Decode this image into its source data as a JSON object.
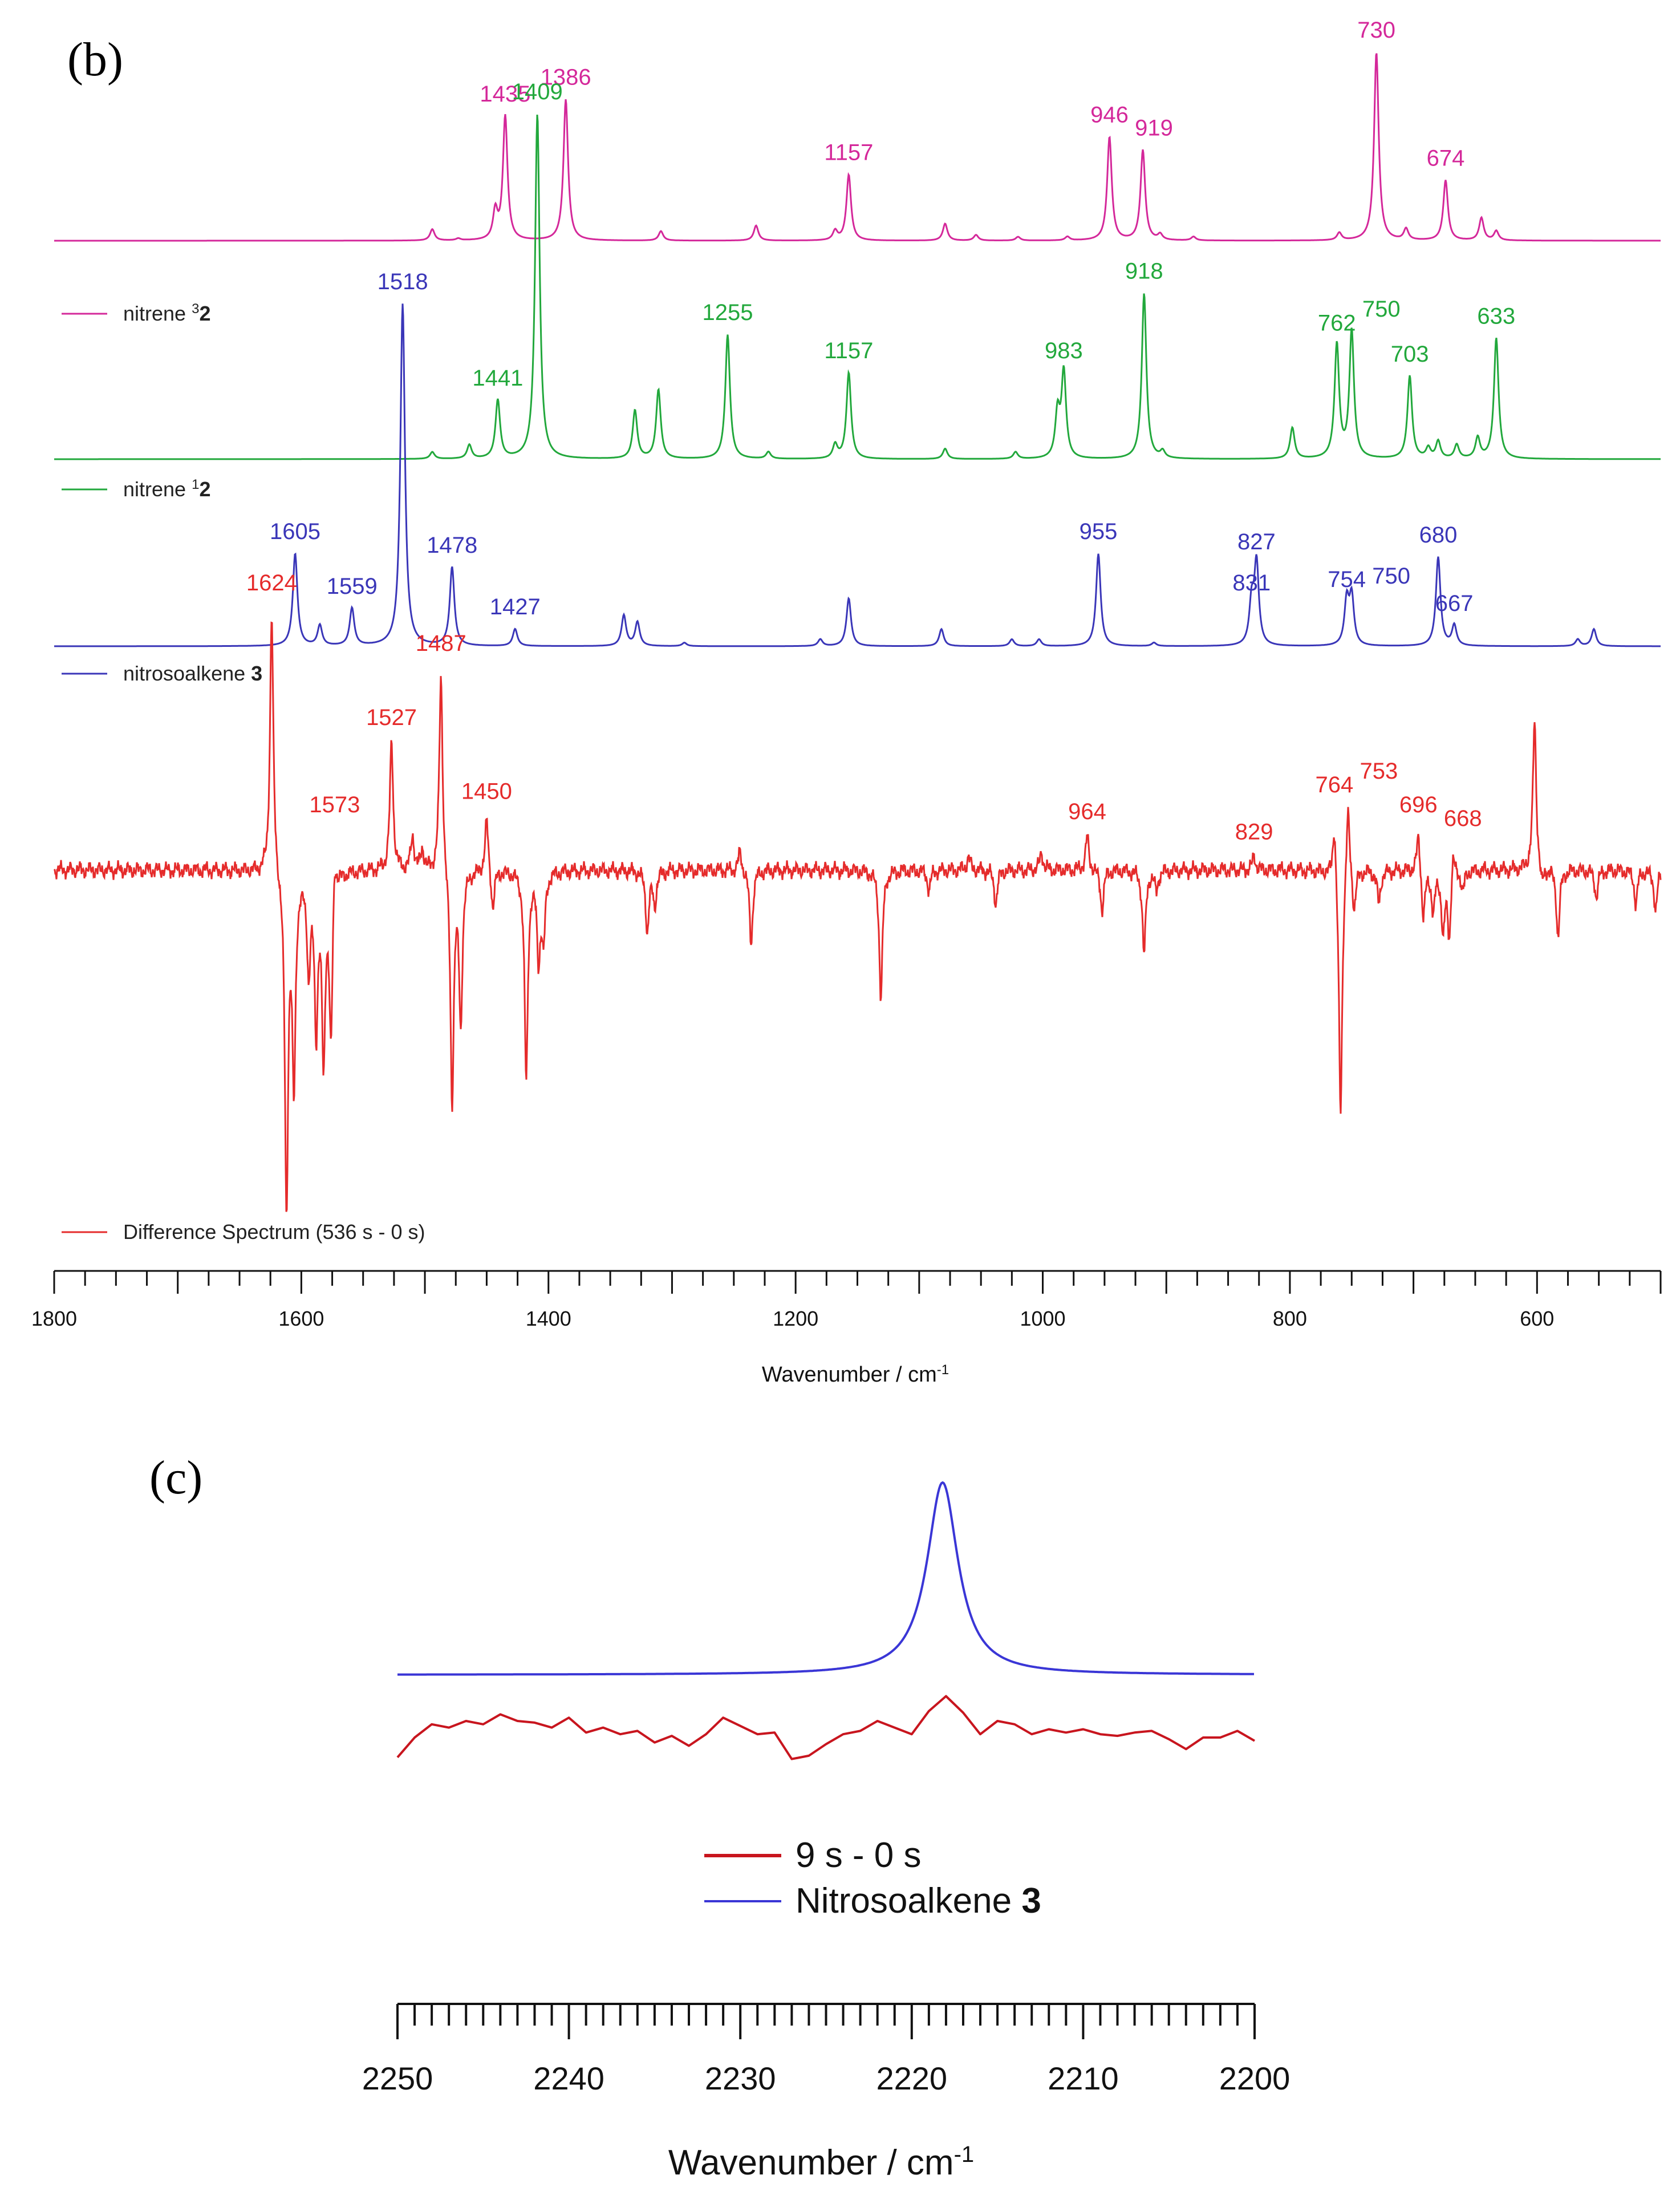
{
  "chart_data": [
    {
      "panel": "(b)",
      "type": "line",
      "xlabel": "Wavenumber / cm",
      "xlabel_sup": "-1",
      "xlim": [
        1800,
        500
      ],
      "x_ticks": [
        1800,
        1600,
        1400,
        1200,
        1000,
        800,
        600
      ],
      "series": [
        {
          "id": "nitrene3",
          "name_text": "nitrene ",
          "name_sup": "3",
          "name_bold": "2",
          "color": "#d4289a",
          "peaks": [
            {
              "x": 1494,
              "h": 0.06
            },
            {
              "x": 1473,
              "h": 0.01
            },
            {
              "x": 1443,
              "h": 0.15
            },
            {
              "x": 1435,
              "h": 0.66,
              "label": "1435"
            },
            {
              "x": 1386,
              "h": 0.75,
              "label": "1386"
            },
            {
              "x": 1309,
              "h": 0.05
            },
            {
              "x": 1232,
              "h": 0.08
            },
            {
              "x": 1168,
              "h": 0.05
            },
            {
              "x": 1157,
              "h": 0.35,
              "label": "1157"
            },
            {
              "x": 1079,
              "h": 0.09
            },
            {
              "x": 1054,
              "h": 0.03
            },
            {
              "x": 1020,
              "h": 0.02
            },
            {
              "x": 980,
              "h": 0.02
            },
            {
              "x": 946,
              "h": 0.55,
              "label": "946"
            },
            {
              "x": 919,
              "h": 0.48,
              "label": "919"
            },
            {
              "x": 905,
              "h": 0.03
            },
            {
              "x": 878,
              "h": 0.02
            },
            {
              "x": 760,
              "h": 0.04
            },
            {
              "x": 730,
              "h": 1.0,
              "label": "730"
            },
            {
              "x": 706,
              "h": 0.06
            },
            {
              "x": 674,
              "h": 0.32,
              "label": "674"
            },
            {
              "x": 645,
              "h": 0.12
            },
            {
              "x": 633,
              "h": 0.05
            }
          ]
        },
        {
          "id": "nitrene1",
          "name_text": "nitrene ",
          "name_sup": "1",
          "name_bold": "2",
          "color": "#22a83c",
          "peaks": [
            {
              "x": 1494,
              "h": 0.02
            },
            {
              "x": 1464,
              "h": 0.04
            },
            {
              "x": 1441,
              "h": 0.17,
              "label": "1441"
            },
            {
              "x": 1409,
              "h": 1.0,
              "label": "1409"
            },
            {
              "x": 1330,
              "h": 0.14
            },
            {
              "x": 1311,
              "h": 0.2
            },
            {
              "x": 1255,
              "h": 0.36,
              "label": "1255"
            },
            {
              "x": 1222,
              "h": 0.02
            },
            {
              "x": 1168,
              "h": 0.04
            },
            {
              "x": 1157,
              "h": 0.25,
              "label": "1157"
            },
            {
              "x": 1079,
              "h": 0.03
            },
            {
              "x": 1022,
              "h": 0.02
            },
            {
              "x": 988,
              "h": 0.13
            },
            {
              "x": 983,
              "h": 0.25,
              "label": "983"
            },
            {
              "x": 918,
              "h": 0.48,
              "label": "918"
            },
            {
              "x": 903,
              "h": 0.02
            },
            {
              "x": 798,
              "h": 0.09
            },
            {
              "x": 762,
              "h": 0.33,
              "label": "762"
            },
            {
              "x": 750,
              "h": 0.37,
              "label": "750"
            },
            {
              "x": 703,
              "h": 0.24,
              "label": "703"
            },
            {
              "x": 688,
              "h": 0.03
            },
            {
              "x": 680,
              "h": 0.05
            },
            {
              "x": 665,
              "h": 0.04
            },
            {
              "x": 648,
              "h": 0.06
            },
            {
              "x": 633,
              "h": 0.35,
              "label": "633"
            }
          ]
        },
        {
          "id": "nitroso3",
          "name_text": "nitrosoalkene ",
          "name_sup": "",
          "name_bold": "3",
          "color": "#3a36b8",
          "peaks": [
            {
              "x": 1605,
              "h": 0.27,
              "label": "1605"
            },
            {
              "x": 1585,
              "h": 0.06
            },
            {
              "x": 1559,
              "h": 0.11,
              "label": "1559"
            },
            {
              "x": 1518,
              "h": 1.0,
              "label": "1518"
            },
            {
              "x": 1478,
              "h": 0.23,
              "label": "1478"
            },
            {
              "x": 1427,
              "h": 0.05,
              "label": "1427"
            },
            {
              "x": 1339,
              "h": 0.09
            },
            {
              "x": 1328,
              "h": 0.07
            },
            {
              "x": 1290,
              "h": 0.01
            },
            {
              "x": 1180,
              "h": 0.02
            },
            {
              "x": 1157,
              "h": 0.14
            },
            {
              "x": 1082,
              "h": 0.05
            },
            {
              "x": 1025,
              "h": 0.02
            },
            {
              "x": 1003,
              "h": 0.02
            },
            {
              "x": 955,
              "h": 0.27,
              "label": "955"
            },
            {
              "x": 910,
              "h": 0.01
            },
            {
              "x": 831,
              "h": 0.12,
              "label": "831"
            },
            {
              "x": 827,
              "h": 0.24,
              "label": "827"
            },
            {
              "x": 754,
              "h": 0.13,
              "label": "754"
            },
            {
              "x": 750,
              "h": 0.14,
              "label": "750"
            },
            {
              "x": 680,
              "h": 0.26,
              "label": "680"
            },
            {
              "x": 667,
              "h": 0.06,
              "label": "667"
            },
            {
              "x": 567,
              "h": 0.02
            },
            {
              "x": 554,
              "h": 0.05
            }
          ]
        },
        {
          "id": "diff",
          "name_text": "Difference Spectrum (536 s -  0 s)",
          "name_sup": "",
          "name_bold": "",
          "color": "#e52b2b",
          "peaks": [
            {
              "x": 1624,
              "h": 0.78,
              "label": "1624"
            },
            {
              "x": 1612,
              "h": -1.0
            },
            {
              "x": 1606,
              "h": -0.62
            },
            {
              "x": 1594,
              "h": -0.28
            },
            {
              "x": 1588,
              "h": -0.45
            },
            {
              "x": 1582,
              "h": -0.55
            },
            {
              "x": 1576,
              "h": -0.5
            },
            {
              "x": 1573,
              "h": 0.12,
              "label": "1573"
            },
            {
              "x": 1527,
              "h": 0.38,
              "label": "1527"
            },
            {
              "x": 1510,
              "h": 0.1
            },
            {
              "x": 1502,
              "h": 0.06
            },
            {
              "x": 1487,
              "h": 0.6,
              "label": "1487"
            },
            {
              "x": 1478,
              "h": -0.7
            },
            {
              "x": 1471,
              "h": -0.45
            },
            {
              "x": 1450,
              "h": 0.16,
              "label": "1450"
            },
            {
              "x": 1445,
              "h": -0.12
            },
            {
              "x": 1418,
              "h": -0.62
            },
            {
              "x": 1408,
              "h": -0.25
            },
            {
              "x": 1404,
              "h": -0.2
            },
            {
              "x": 1320,
              "h": -0.18
            },
            {
              "x": 1314,
              "h": -0.1
            },
            {
              "x": 1245,
              "h": 0.06
            },
            {
              "x": 1236,
              "h": -0.22
            },
            {
              "x": 1131,
              "h": -0.38
            },
            {
              "x": 1092,
              "h": -0.06
            },
            {
              "x": 1060,
              "h": 0.04
            },
            {
              "x": 1038,
              "h": -0.1
            },
            {
              "x": 1001,
              "h": 0.05
            },
            {
              "x": 964,
              "h": 0.1,
              "label": "964"
            },
            {
              "x": 952,
              "h": -0.12
            },
            {
              "x": 918,
              "h": -0.25
            },
            {
              "x": 908,
              "h": -0.06
            },
            {
              "x": 829,
              "h": 0.04,
              "label": "829"
            },
            {
              "x": 764,
              "h": 0.18,
              "label": "764"
            },
            {
              "x": 759,
              "h": -0.75
            },
            {
              "x": 753,
              "h": 0.22,
              "label": "753"
            },
            {
              "x": 748,
              "h": -0.12
            },
            {
              "x": 728,
              "h": -0.1
            },
            {
              "x": 696,
              "h": 0.12,
              "label": "696"
            },
            {
              "x": 692,
              "h": -0.15
            },
            {
              "x": 684,
              "h": -0.12
            },
            {
              "x": 676,
              "h": -0.18
            },
            {
              "x": 671,
              "h": -0.2
            },
            {
              "x": 668,
              "h": 0.08,
              "label": "668"
            },
            {
              "x": 660,
              "h": -0.06
            },
            {
              "x": 602,
              "h": 0.45
            },
            {
              "x": 596,
              "h": -0.06
            },
            {
              "x": 583,
              "h": -0.2
            },
            {
              "x": 552,
              "h": -0.08
            },
            {
              "x": 520,
              "h": -0.1
            },
            {
              "x": 504,
              "h": -0.12
            }
          ]
        }
      ]
    },
    {
      "panel": "(c)",
      "type": "line",
      "xlabel": "Wavenumber / cm",
      "xlabel_sup": "-1",
      "xlim": [
        2250,
        2200
      ],
      "x_ticks": [
        2250,
        2240,
        2230,
        2220,
        2210,
        2200
      ],
      "series": [
        {
          "id": "nitroso3c",
          "name_text": "Nitrosoalkene ",
          "name_bold": "3",
          "color": "#3a36d6",
          "peak_center": 2218.2,
          "peak_height": 1.0
        },
        {
          "id": "diffc",
          "name_text": "9 s - 0 s",
          "name_bold": "",
          "color": "#c8151e",
          "x": [
            2250,
            2249,
            2248,
            2247,
            2246,
            2245,
            2244,
            2243,
            2242,
            2241,
            2240,
            2239,
            2238,
            2237,
            2236,
            2235,
            2234,
            2233,
            2232,
            2231,
            2230,
            2229,
            2228,
            2227,
            2226,
            2225,
            2224,
            2223,
            2222,
            2221,
            2220,
            2219,
            2218,
            2217,
            2216,
            2215,
            2214,
            2213,
            2212,
            2211,
            2210,
            2209,
            2208,
            2207,
            2206,
            2205,
            2204,
            2203,
            2202,
            2201,
            2200
          ],
          "y": [
            -0.02,
            0.1,
            0.18,
            0.16,
            0.2,
            0.18,
            0.24,
            0.2,
            0.19,
            0.16,
            0.22,
            0.13,
            0.16,
            0.12,
            0.14,
            0.07,
            0.11,
            0.05,
            0.12,
            0.22,
            0.17,
            0.12,
            0.13,
            -0.03,
            -0.01,
            0.06,
            0.12,
            0.14,
            0.2,
            0.16,
            0.12,
            0.26,
            0.35,
            0.25,
            0.12,
            0.2,
            0.18,
            0.12,
            0.15,
            0.13,
            0.15,
            0.12,
            0.11,
            0.13,
            0.14,
            0.09,
            0.03,
            0.1,
            0.1,
            0.14,
            0.08
          ]
        }
      ]
    }
  ]
}
